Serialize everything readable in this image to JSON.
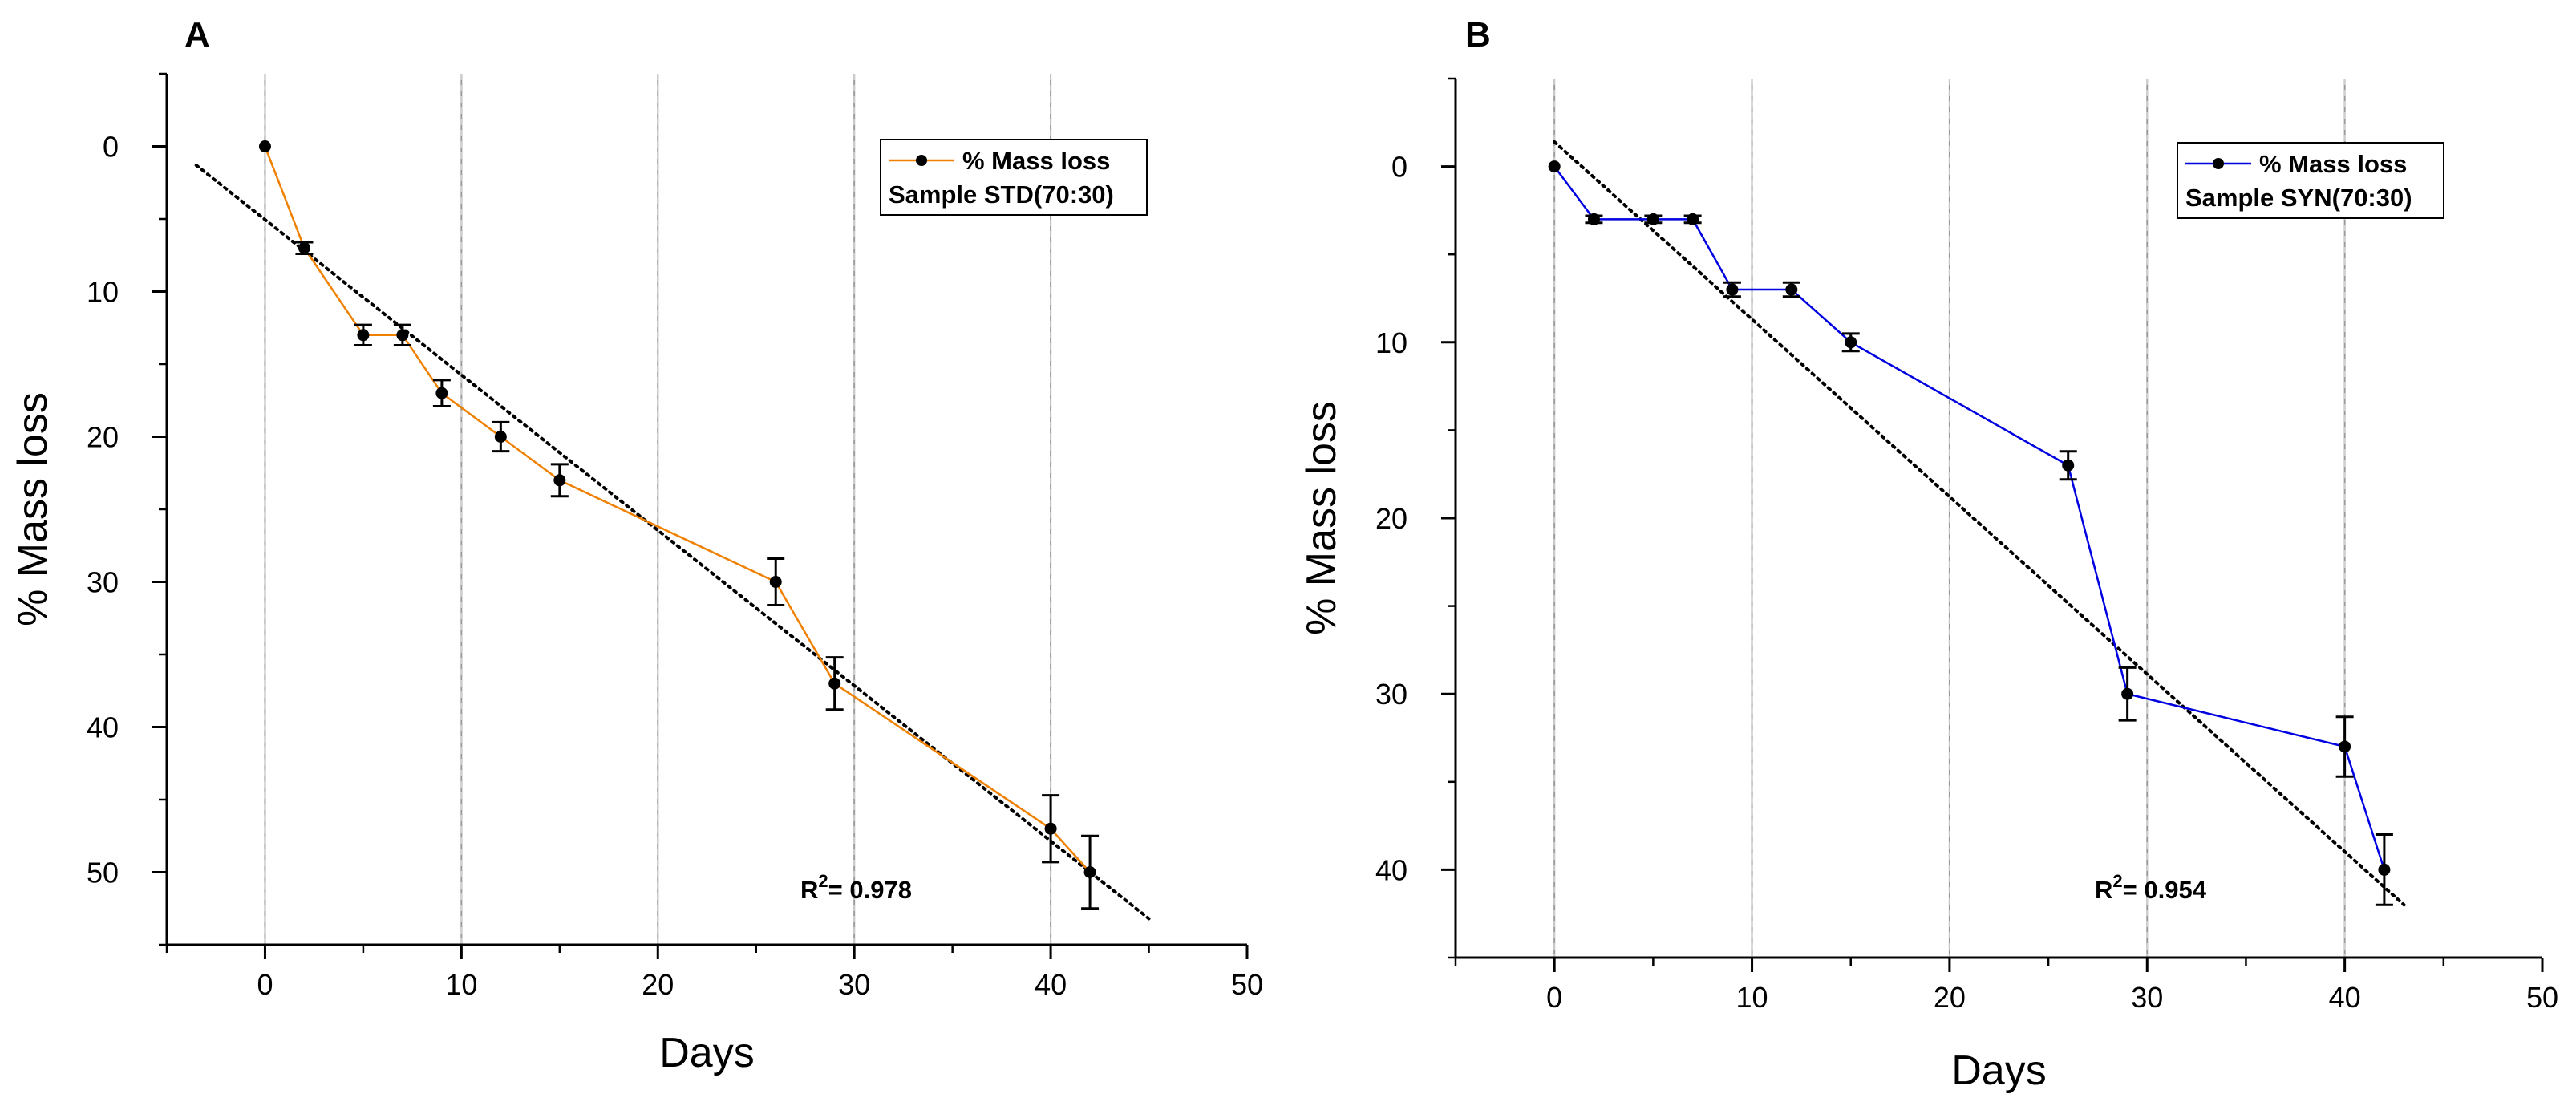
{
  "chart_data": [
    {
      "type": "line",
      "panel_label": "A",
      "title": "",
      "xlabel": "Days",
      "ylabel": "% Mass loss",
      "xlim": [
        -5,
        50
      ],
      "ylim": [
        55,
        -5
      ],
      "x_ticks": [
        0,
        10,
        20,
        30,
        40,
        50
      ],
      "y_ticks": [
        0,
        10,
        20,
        30,
        40,
        50
      ],
      "grid": "vertical",
      "legend": {
        "placement": "top-right",
        "entries": [
          "% Mass loss",
          "Sample STD(70:30)"
        ]
      },
      "annotation": {
        "prefix": "R",
        "sup": "2",
        "text": "= 0.978"
      },
      "series": [
        {
          "name": "% Mass loss",
          "color": "#f08000",
          "x": [
            0,
            2,
            5,
            7,
            9,
            12,
            15,
            26,
            29,
            40,
            42
          ],
          "values": [
            0,
            7,
            13,
            13,
            17,
            20,
            23,
            30,
            37,
            47,
            50
          ],
          "errors": [
            0,
            0.4,
            0.7,
            0.7,
            0.9,
            1.0,
            1.1,
            1.6,
            1.8,
            2.3,
            2.5
          ]
        }
      ],
      "trendline": {
        "style": "dotted",
        "color": "#000000",
        "x": [
          -3.5,
          45
        ],
        "values": [
          1.3,
          53.2
        ]
      }
    },
    {
      "type": "line",
      "panel_label": "B",
      "title": "",
      "xlabel": "Days",
      "ylabel": "% Mass loss",
      "xlim": [
        -5,
        50
      ],
      "ylim": [
        45,
        -5
      ],
      "x_ticks": [
        0,
        10,
        20,
        30,
        40,
        50
      ],
      "y_ticks": [
        0,
        10,
        20,
        30,
        40
      ],
      "grid": "vertical",
      "legend": {
        "placement": "top-right",
        "entries": [
          "% Mass loss",
          "Sample SYN(70:30)"
        ]
      },
      "annotation": {
        "prefix": "R",
        "sup": "2",
        "text": "= 0.954"
      },
      "series": [
        {
          "name": "% Mass loss",
          "color": "#0000e0",
          "x": [
            0,
            2,
            5,
            7,
            9,
            12,
            15,
            26,
            29,
            40,
            42
          ],
          "values": [
            0,
            3,
            3,
            3,
            7,
            7,
            10,
            17,
            30,
            33,
            40
          ],
          "errors": [
            0,
            0.2,
            0.2,
            0.2,
            0.4,
            0.4,
            0.5,
            0.8,
            1.5,
            1.7,
            2.0
          ]
        }
      ],
      "trendline": {
        "style": "dotted",
        "color": "#000000",
        "x": [
          0,
          43
        ],
        "values": [
          -1.4,
          42.0
        ]
      }
    }
  ]
}
